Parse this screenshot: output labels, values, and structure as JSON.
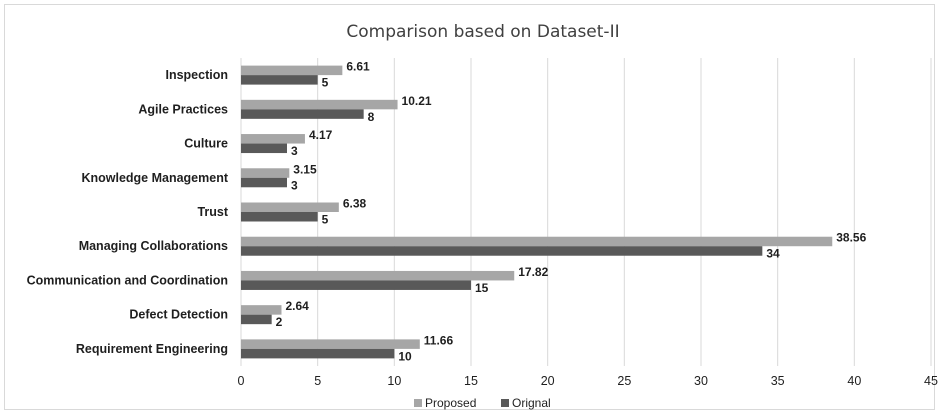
{
  "chart_data": {
    "type": "bar",
    "orientation": "horizontal",
    "title": "Comparison based on Dataset-II",
    "categories": [
      "Inspection",
      "Agile Practices",
      "Culture",
      "Knowledge Management",
      "Trust",
      "Managing Collaborations",
      "Communication and Coordination",
      "Defect Detection",
      "Requirement Engineering"
    ],
    "series": [
      {
        "name": "Proposed",
        "color": "#a6a6a6",
        "values": [
          6.61,
          10.21,
          4.17,
          3.15,
          6.38,
          38.56,
          17.82,
          2.64,
          11.66
        ]
      },
      {
        "name": "Orignal",
        "color": "#595959",
        "values": [
          5,
          8,
          3,
          3,
          5,
          34,
          15,
          2,
          10
        ]
      }
    ],
    "xlim": [
      0,
      45
    ],
    "xticks": [
      0,
      5,
      10,
      15,
      20,
      25,
      30,
      35,
      40,
      45
    ],
    "grid": true,
    "legend": "bottom"
  }
}
